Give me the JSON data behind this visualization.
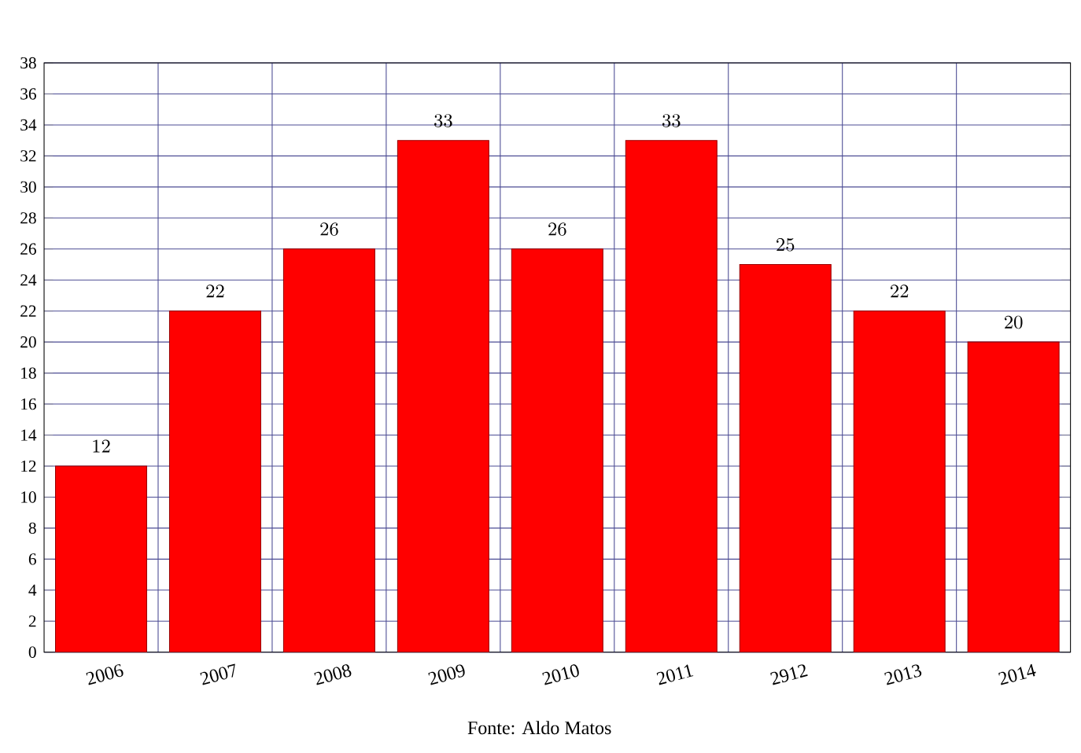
{
  "chart_data": {
    "type": "bar",
    "categories": [
      "2006",
      "2007",
      "2008",
      "2009",
      "2010",
      "2011",
      "2912",
      "2013",
      "2014"
    ],
    "values": [
      12,
      22,
      26,
      33,
      26,
      33,
      25,
      22,
      20
    ],
    "color": "#ff0000",
    "ylim": [
      0,
      38
    ],
    "yticks": [
      0,
      2,
      4,
      6,
      8,
      10,
      12,
      14,
      16,
      18,
      20,
      22,
      24,
      26,
      28,
      30,
      32,
      34,
      36,
      38
    ],
    "grid": true,
    "data_labels": true,
    "annotations": [
      "Fonte: Aldo Matos"
    ]
  }
}
